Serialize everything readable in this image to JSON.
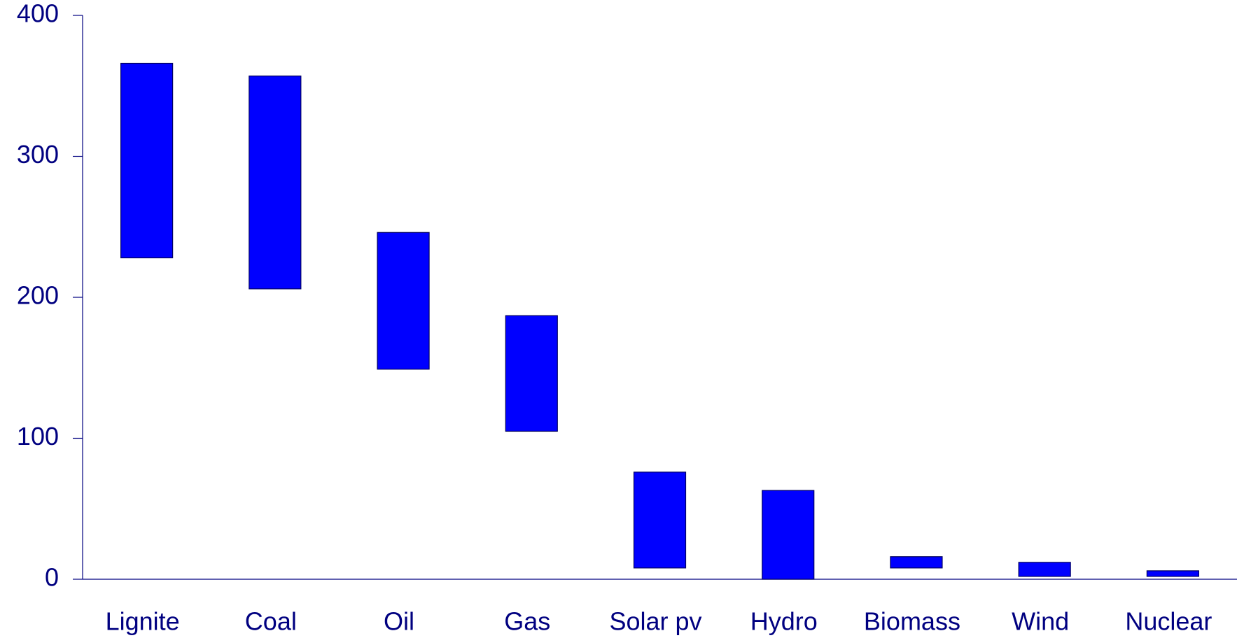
{
  "chart_data": {
    "type": "range-bar",
    "categories": [
      "Lignite",
      "Coal",
      "Oil",
      "Gas",
      "Solar pv",
      "Hydro",
      "Biomass",
      "Wind",
      "Nuclear"
    ],
    "low": [
      228,
      206,
      149,
      105,
      8,
      0,
      8,
      2,
      2
    ],
    "high": [
      366,
      357,
      246,
      187,
      76,
      63,
      16,
      12,
      6
    ],
    "color": "#0000ff",
    "ylim": [
      0,
      400
    ],
    "yticks": [
      0,
      100,
      200,
      300,
      400
    ],
    "grid": false
  }
}
